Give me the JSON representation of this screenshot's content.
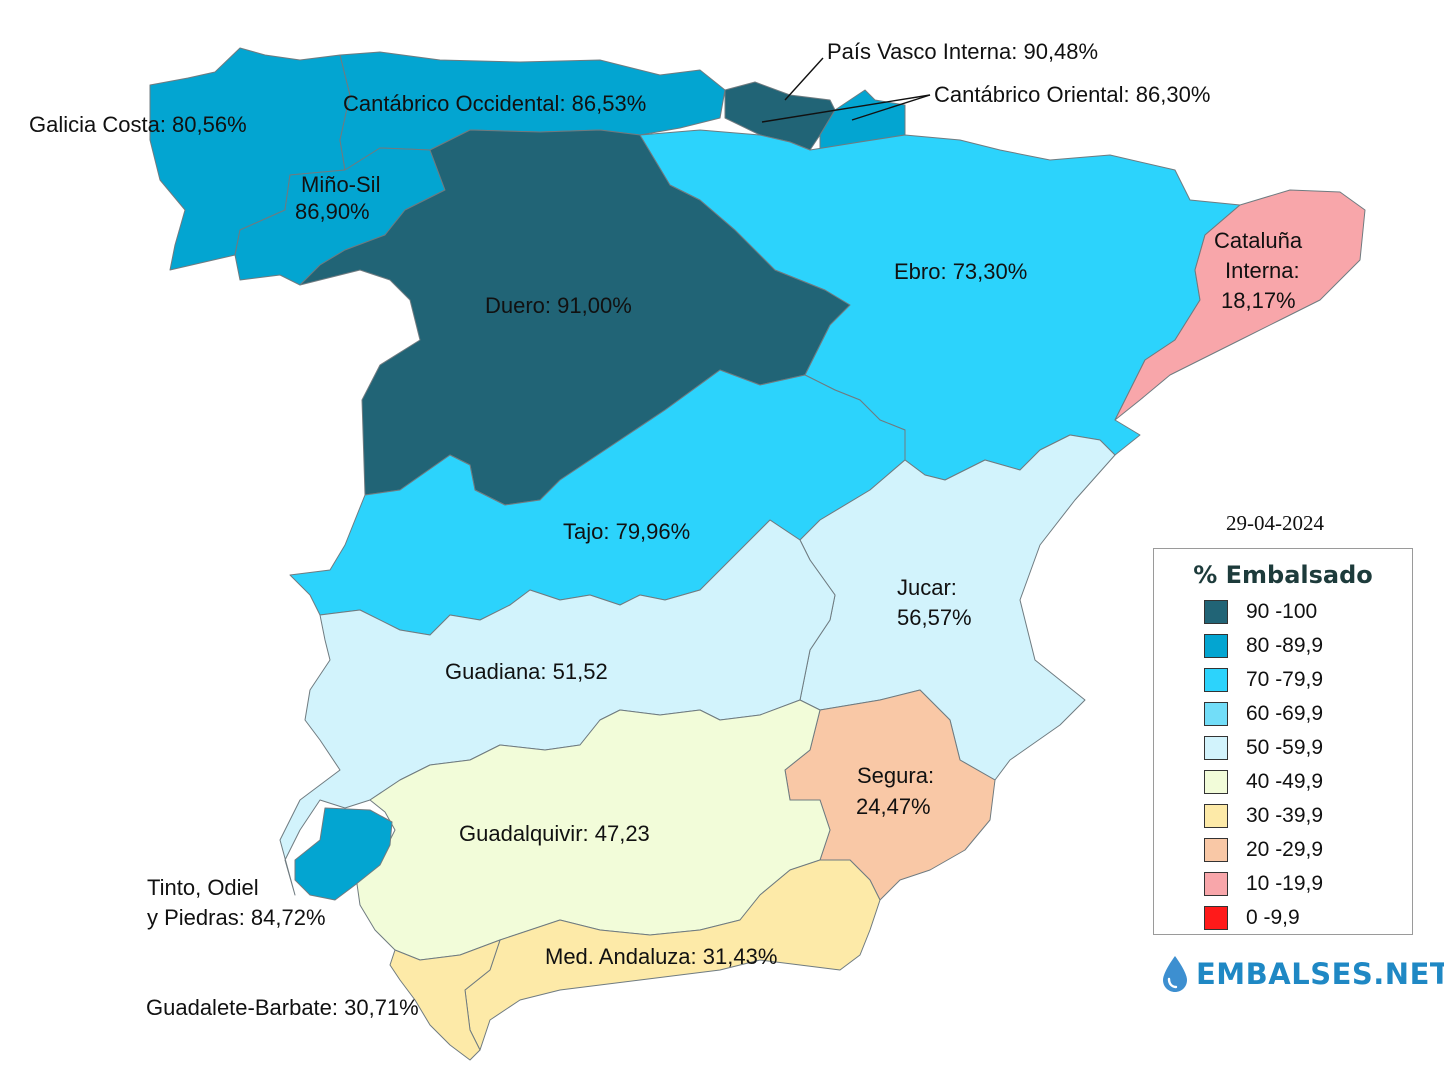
{
  "date": "29-04-2024",
  "legend": {
    "title": "% Embalsado",
    "bins": [
      {
        "range": "90 -100",
        "color": "#216476"
      },
      {
        "range": "80 -89,9",
        "color": "#03a5d1"
      },
      {
        "range": "70 -79,9",
        "color": "#2cd3fc"
      },
      {
        "range": "60 -69,9",
        "color": "#72ddf8"
      },
      {
        "range": "50 -59,9",
        "color": "#d2f3fc"
      },
      {
        "range": "40 -49,9",
        "color": "#f2fcd9"
      },
      {
        "range": "30 -39,9",
        "color": "#fdeaa8"
      },
      {
        "range": "20 -29,9",
        "color": "#f9c8a6"
      },
      {
        "range": "10 -19,9",
        "color": "#f8a6aa"
      },
      {
        "range": "0 -9,9",
        "color": "#ff1a1a"
      }
    ]
  },
  "basins": [
    {
      "id": "galicia-costa",
      "name": "Galicia Costa",
      "value": "80,56%",
      "color": "#03a5d1"
    },
    {
      "id": "cantabrico-occidental",
      "name": "Cantábrico Occidental",
      "value": "86,53%",
      "color": "#03a5d1"
    },
    {
      "id": "pais-vasco-interna",
      "name": "País Vasco Interna",
      "value": "90,48%",
      "color": "#216476"
    },
    {
      "id": "cantabrico-oriental",
      "name": "Cantábrico Oriental",
      "value": "86,30%",
      "color": "#03a5d1"
    },
    {
      "id": "mino-sil",
      "name": "Miño-Sil",
      "value": "86,90%",
      "color": "#03a5d1"
    },
    {
      "id": "duero",
      "name": "Duero",
      "value": "91,00%",
      "color": "#216476"
    },
    {
      "id": "ebro",
      "name": "Ebro",
      "value": "73,30%",
      "color": "#2cd3fc"
    },
    {
      "id": "cataluna-interna",
      "name": "Cataluña Interna",
      "value": "18,17%",
      "color": "#f8a6aa"
    },
    {
      "id": "tajo",
      "name": "Tajo",
      "value": "79,96%",
      "color": "#2cd3fc"
    },
    {
      "id": "jucar",
      "name": "Jucar",
      "value": "56,57%",
      "color": "#d2f3fc"
    },
    {
      "id": "guadiana",
      "name": "Guadiana",
      "value": "51,52",
      "color": "#d2f3fc"
    },
    {
      "id": "segura",
      "name": "Segura",
      "value": "24,47%",
      "color": "#f9c8a6"
    },
    {
      "id": "guadalquivir",
      "name": "Guadalquivir",
      "value": "47,23",
      "color": "#f2fcd9"
    },
    {
      "id": "tinto-odiel-piedras",
      "name": "Tinto, Odiel y Piedras",
      "value": "84,72%",
      "color": "#03a5d1"
    },
    {
      "id": "med-andaluza",
      "name": "Med. Andaluza",
      "value": "31,43%",
      "color": "#fdeaa8"
    },
    {
      "id": "guadalete-barbate",
      "name": "Guadalete-Barbate",
      "value": "30,71%",
      "color": "#fdeaa8"
    }
  ],
  "labels": {
    "galicia_costa": "Galicia Costa: 80,56%",
    "cantabrico_occidental": "Cantábrico Occidental: 86,53%",
    "pais_vasco_interna": "País Vasco Interna: 90,48%",
    "cantabrico_oriental": "Cantábrico Oriental: 86,30%",
    "mino_sil_1": "Miño-Sil",
    "mino_sil_2": "86,90%",
    "duero": "Duero: 91,00%",
    "ebro": "Ebro: 73,30%",
    "cataluna_1": "Cataluña",
    "cataluna_2": "Interna:",
    "cataluna_3": "18,17%",
    "tajo": "Tajo: 79,96%",
    "jucar_1": "Jucar:",
    "jucar_2": "56,57%",
    "guadiana": "Guadiana: 51,52",
    "segura_1": "Segura:",
    "segura_2": "24,47%",
    "guadalquivir": "Guadalquivir: 47,23",
    "tinto_1": "Tinto, Odiel",
    "tinto_2": "y Piedras: 84,72%",
    "med_andaluza": "Med. Andaluza: 31,43%",
    "guadalete_barbate": "Guadalete-Barbate: 30,71%"
  },
  "brand": {
    "name": "EMBALSES.NET",
    "icon": "water-drop-icon"
  }
}
